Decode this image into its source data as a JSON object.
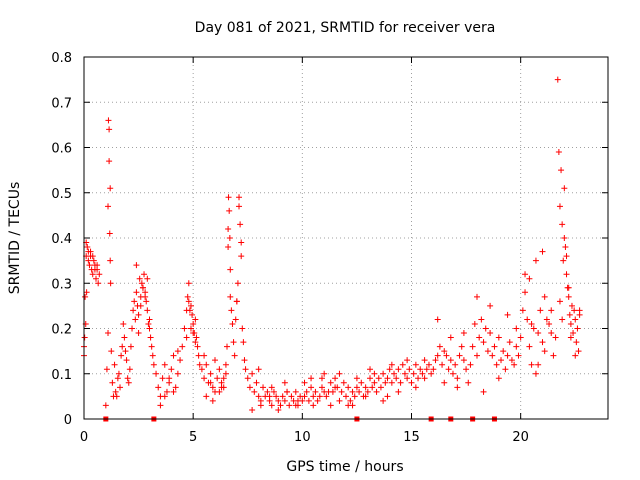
{
  "chart_data": {
    "type": "scatter",
    "title": "Day 081 of 2021, SRMTID for receiver vera",
    "xlabel": "GPS time / hours",
    "ylabel": "SRMTID / TECUs",
    "xlim": [
      0,
      24
    ],
    "ylim": [
      0,
      0.8
    ],
    "xticks": [
      0,
      5,
      10,
      15,
      20
    ],
    "yticks": [
      0,
      0.1,
      0.2,
      0.3,
      0.4,
      0.5,
      0.6,
      0.7,
      0.8
    ],
    "xtick_labels": [
      "0",
      "5",
      "10",
      "15",
      "20"
    ],
    "ytick_labels": [
      "0",
      "0.1",
      "0.2",
      "0.3",
      "0.4",
      "0.5",
      "0.6",
      "0.7",
      "0.8"
    ],
    "grid": true,
    "marker": "+",
    "marker_color": "#ff0000",
    "series": [
      {
        "name": "SRMTID",
        "x": [
          0.0,
          0.05,
          0.1,
          0.15,
          0.2,
          0.25,
          0.3,
          0.35,
          0.4,
          0.45,
          0.5,
          0.55,
          0.6,
          0.65,
          0.7,
          0.1,
          0.2,
          0.3,
          0.4,
          0.5,
          0.6,
          0.0,
          0.08,
          0.03,
          0.12,
          1.0,
          1.05,
          1.1,
          1.12,
          1.15,
          1.18,
          1.2,
          1.22,
          1.25,
          1.1,
          1.15,
          1.2,
          1.3,
          1.35,
          1.4,
          1.45,
          1.5,
          1.55,
          1.6,
          1.65,
          1.7,
          1.75,
          1.8,
          1.85,
          1.9,
          1.95,
          2.0,
          2.05,
          2.1,
          2.15,
          2.2,
          2.25,
          2.3,
          2.35,
          2.4,
          2.45,
          2.5,
          2.55,
          2.6,
          2.65,
          2.7,
          2.75,
          2.8,
          2.85,
          2.9,
          2.95,
          3.0,
          3.05,
          3.1,
          3.15,
          3.2,
          2.4,
          2.6,
          2.8,
          3.0,
          2.5,
          2.7,
          2.9,
          3.3,
          3.4,
          3.5,
          3.6,
          3.7,
          3.8,
          3.9,
          4.0,
          4.1,
          4.2,
          4.3,
          4.4,
          3.5,
          3.7,
          3.9,
          4.1,
          4.3,
          4.5,
          4.6,
          4.7,
          4.75,
          4.8,
          4.85,
          4.9,
          4.95,
          5.0,
          5.05,
          5.1,
          5.15,
          5.2,
          5.25,
          5.3,
          4.8,
          4.9,
          5.0,
          5.1,
          4.7,
          5.4,
          5.5,
          5.6,
          5.7,
          5.8,
          5.9,
          6.0,
          6.1,
          6.2,
          6.3,
          6.4,
          6.5,
          5.6,
          5.8,
          6.0,
          6.2,
          6.4,
          5.5,
          5.9,
          6.3,
          6.5,
          6.55,
          6.6,
          6.62,
          6.65,
          6.68,
          6.7,
          6.75,
          6.8,
          6.85,
          6.9,
          6.95,
          7.0,
          7.05,
          7.1,
          7.15,
          7.2,
          7.25,
          7.3,
          7.35,
          7.4,
          6.6,
          6.7,
          7.0,
          7.1,
          7.2,
          7.5,
          7.6,
          7.7,
          7.8,
          7.9,
          8.0,
          8.1,
          8.2,
          8.3,
          8.4,
          8.5,
          8.6,
          8.7,
          8.8,
          8.9,
          9.0,
          9.1,
          9.2,
          9.3,
          9.4,
          9.5,
          9.6,
          9.7,
          9.8,
          9.9,
          10.0,
          10.1,
          10.2,
          10.3,
          10.4,
          10.5,
          10.6,
          10.7,
          10.8,
          10.9,
          11.0,
          7.7,
          8.1,
          8.5,
          8.9,
          9.3,
          9.7,
          10.1,
          10.5,
          10.9,
          8.0,
          8.6,
          9.2,
          9.8,
          10.4,
          11.0,
          11.1,
          11.2,
          11.3,
          11.4,
          11.5,
          11.6,
          11.7,
          11.8,
          11.9,
          12.0,
          12.1,
          12.2,
          12.3,
          12.4,
          12.5,
          12.6,
          12.7,
          12.8,
          12.9,
          13.0,
          13.1,
          13.2,
          13.3,
          13.4,
          13.5,
          13.6,
          13.7,
          13.8,
          13.9,
          14.0,
          11.3,
          11.7,
          12.1,
          12.5,
          12.9,
          13.3,
          13.7,
          14.1,
          11.5,
          12.3,
          13.1,
          13.9,
          14.1,
          14.2,
          14.3,
          14.4,
          14.5,
          14.6,
          14.7,
          14.8,
          14.9,
          15.0,
          15.1,
          15.2,
          15.3,
          15.4,
          15.5,
          15.6,
          15.7,
          15.8,
          15.9,
          14.4,
          14.8,
          15.2,
          15.6,
          16.0,
          16.1,
          16.2,
          16.3,
          16.4,
          16.5,
          16.6,
          16.7,
          16.8,
          16.9,
          17.0,
          17.1,
          17.2,
          17.3,
          17.4,
          17.5,
          16.2,
          16.5,
          16.8,
          17.1,
          17.4,
          17.6,
          17.7,
          17.8,
          17.9,
          18.0,
          18.1,
          18.2,
          18.3,
          18.4,
          18.5,
          18.6,
          18.7,
          18.8,
          18.9,
          19.0,
          19.1,
          19.2,
          19.3,
          19.4,
          19.5,
          19.6,
          19.7,
          19.8,
          19.9,
          20.0,
          18.0,
          18.3,
          18.6,
          19.0,
          19.4,
          19.8,
          20.1,
          20.2,
          20.3,
          20.4,
          20.5,
          20.6,
          20.7,
          20.8,
          20.9,
          21.0,
          21.1,
          21.2,
          21.3,
          21.4,
          21.5,
          21.6,
          20.2,
          20.5,
          20.8,
          21.1,
          21.4,
          20.4,
          20.7,
          21.0,
          21.7,
          21.75,
          21.8,
          21.85,
          21.9,
          21.95,
          22.0,
          22.05,
          22.1,
          22.15,
          22.2,
          22.25,
          22.3,
          22.35,
          22.4,
          22.45,
          22.5,
          22.55,
          22.6,
          22.65,
          22.7,
          21.8,
          21.9,
          22.0,
          22.1,
          22.2,
          22.3,
          22.5,
          22.7
        ],
        "y": [
          0.16,
          0.27,
          0.36,
          0.38,
          0.35,
          0.34,
          0.36,
          0.33,
          0.32,
          0.35,
          0.33,
          0.31,
          0.34,
          0.3,
          0.32,
          0.39,
          0.37,
          0.37,
          0.36,
          0.34,
          0.33,
          0.14,
          0.21,
          0.18,
          0.28,
          0.03,
          0.11,
          0.19,
          0.66,
          0.57,
          0.41,
          0.35,
          0.3,
          0.15,
          0.47,
          0.64,
          0.51,
          0.08,
          0.05,
          0.12,
          0.06,
          0.05,
          0.09,
          0.1,
          0.07,
          0.14,
          0.16,
          0.21,
          0.18,
          0.15,
          0.13,
          0.09,
          0.08,
          0.11,
          0.16,
          0.2,
          0.24,
          0.26,
          0.22,
          0.28,
          0.25,
          0.23,
          0.31,
          0.27,
          0.3,
          0.29,
          0.32,
          0.28,
          0.26,
          0.24,
          0.21,
          0.2,
          0.18,
          0.16,
          0.14,
          0.12,
          0.34,
          0.25,
          0.27,
          0.22,
          0.19,
          0.29,
          0.31,
          0.1,
          0.07,
          0.05,
          0.09,
          0.12,
          0.06,
          0.08,
          0.11,
          0.14,
          0.07,
          0.1,
          0.13,
          0.03,
          0.05,
          0.09,
          0.06,
          0.15,
          0.16,
          0.2,
          0.24,
          0.27,
          0.3,
          0.24,
          0.2,
          0.23,
          0.21,
          0.19,
          0.22,
          0.18,
          0.16,
          0.14,
          0.12,
          0.26,
          0.25,
          0.19,
          0.17,
          0.18,
          0.11,
          0.09,
          0.12,
          0.08,
          0.1,
          0.07,
          0.06,
          0.09,
          0.11,
          0.08,
          0.07,
          0.1,
          0.05,
          0.08,
          0.13,
          0.06,
          0.09,
          0.14,
          0.04,
          0.07,
          0.12,
          0.16,
          0.38,
          0.49,
          0.46,
          0.4,
          0.27,
          0.24,
          0.21,
          0.17,
          0.14,
          0.22,
          0.26,
          0.3,
          0.49,
          0.43,
          0.36,
          0.2,
          0.17,
          0.13,
          0.11,
          0.42,
          0.33,
          0.26,
          0.47,
          0.39,
          0.09,
          0.07,
          0.1,
          0.06,
          0.08,
          0.05,
          0.04,
          0.07,
          0.05,
          0.06,
          0.04,
          0.03,
          0.06,
          0.05,
          0.04,
          0.03,
          0.05,
          0.04,
          0.06,
          0.03,
          0.05,
          0.04,
          0.06,
          0.03,
          0.05,
          0.04,
          0.05,
          0.06,
          0.04,
          0.07,
          0.05,
          0.06,
          0.04,
          0.05,
          0.07,
          0.06,
          0.02,
          0.03,
          0.05,
          0.02,
          0.06,
          0.03,
          0.08,
          0.03,
          0.09,
          0.11,
          0.07,
          0.08,
          0.04,
          0.09,
          0.1,
          0.05,
          0.06,
          0.08,
          0.06,
          0.09,
          0.07,
          0.1,
          0.06,
          0.08,
          0.05,
          0.07,
          0.04,
          0.06,
          0.05,
          0.07,
          0.06,
          0.08,
          0.05,
          0.07,
          0.06,
          0.09,
          0.07,
          0.08,
          0.06,
          0.09,
          0.07,
          0.1,
          0.08,
          0.09,
          0.11,
          0.03,
          0.04,
          0.03,
          0.09,
          0.05,
          0.1,
          0.04,
          0.12,
          0.07,
          0.03,
          0.11,
          0.05,
          0.08,
          0.1,
          0.09,
          0.11,
          0.08,
          0.12,
          0.1,
          0.09,
          0.11,
          0.08,
          0.1,
          0.12,
          0.09,
          0.11,
          0.1,
          0.13,
          0.11,
          0.12,
          0.1,
          0.06,
          0.13,
          0.07,
          0.09,
          0.11,
          0.13,
          0.14,
          0.16,
          0.12,
          0.15,
          0.14,
          0.11,
          0.13,
          0.1,
          0.12,
          0.09,
          0.14,
          0.16,
          0.13,
          0.11,
          0.22,
          0.08,
          0.18,
          0.07,
          0.19,
          0.08,
          0.12,
          0.16,
          0.21,
          0.14,
          0.18,
          0.22,
          0.17,
          0.2,
          0.15,
          0.19,
          0.14,
          0.16,
          0.12,
          0.18,
          0.13,
          0.15,
          0.11,
          0.14,
          0.17,
          0.13,
          0.12,
          0.16,
          0.14,
          0.18,
          0.27,
          0.06,
          0.25,
          0.09,
          0.23,
          0.2,
          0.24,
          0.32,
          0.22,
          0.16,
          0.12,
          0.2,
          0.35,
          0.19,
          0.24,
          0.17,
          0.15,
          0.22,
          0.21,
          0.19,
          0.14,
          0.18,
          0.28,
          0.21,
          0.12,
          0.27,
          0.24,
          0.31,
          0.1,
          0.37,
          0.75,
          0.59,
          0.47,
          0.55,
          0.43,
          0.35,
          0.51,
          0.38,
          0.32,
          0.29,
          0.27,
          0.23,
          0.21,
          0.25,
          0.19,
          0.24,
          0.22,
          0.17,
          0.2,
          0.15,
          0.23,
          0.26,
          0.22,
          0.4,
          0.36,
          0.29,
          0.18,
          0.14,
          0.24
        ]
      }
    ],
    "x_axis_markers": {
      "marker": "square",
      "y": 0,
      "x": [
        1.0,
        3.2,
        12.5,
        15.9,
        16.8,
        17.8,
        18.8
      ]
    }
  }
}
